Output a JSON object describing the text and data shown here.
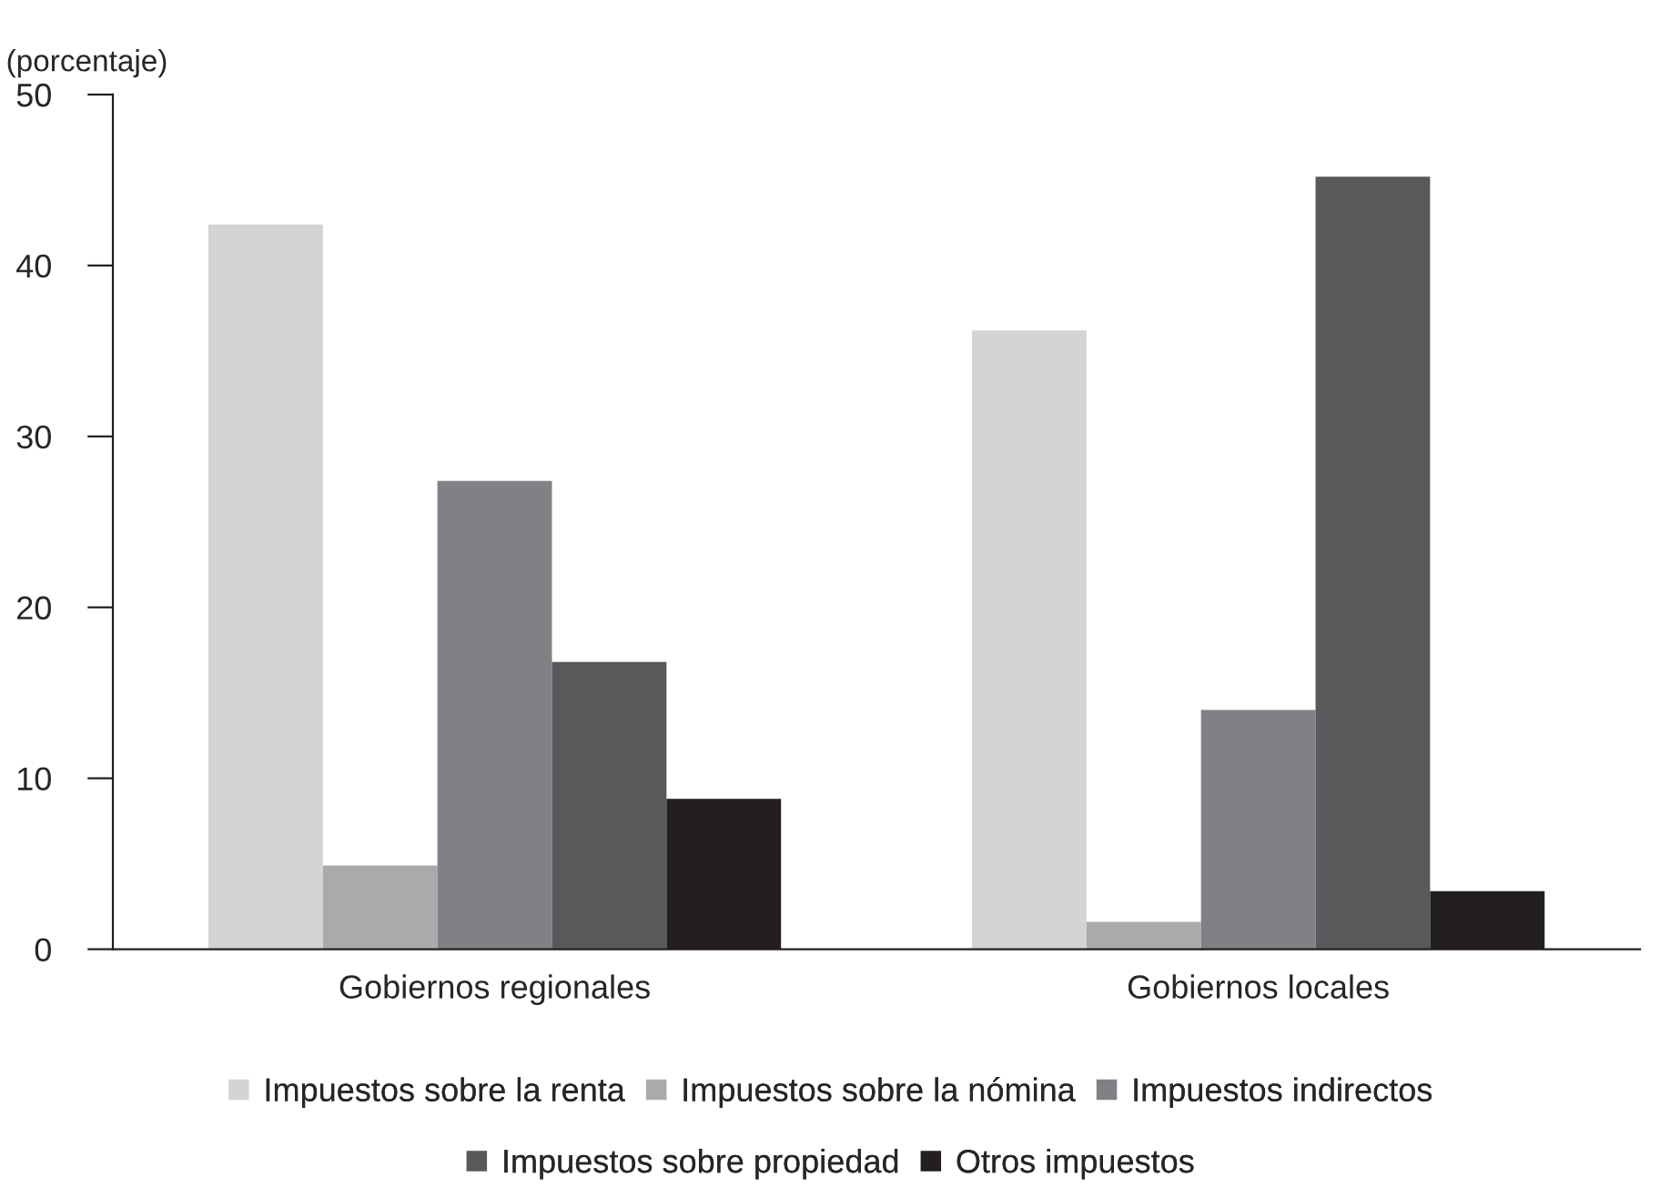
{
  "chart_data": {
    "type": "bar",
    "ylabel": "(porcentaje)",
    "categories": [
      "Gobiernos regionales",
      "Gobiernos locales"
    ],
    "series": [
      {
        "name": "Impuestos sobre la renta",
        "color": "#d4d4d6",
        "values": [
          42.4,
          36.2
        ]
      },
      {
        "name": "Impuestos sobre la nómina",
        "color": "#a9aaac",
        "values": [
          4.9,
          1.6
        ]
      },
      {
        "name": "Impuestos indirectos",
        "color": "#808184",
        "values": [
          27.4,
          14.0
        ]
      },
      {
        "name": "Impuestos sobre propiedad",
        "color": "#58595b",
        "values": [
          16.8,
          45.2
        ]
      },
      {
        "name": "Otros impuestos",
        "color": "#231f20",
        "values": [
          8.8,
          3.4
        ]
      }
    ],
    "ylim": [
      0,
      50
    ],
    "yticks": [
      0,
      10,
      20,
      30,
      40,
      50
    ],
    "grid": false,
    "legend": "bottom"
  }
}
